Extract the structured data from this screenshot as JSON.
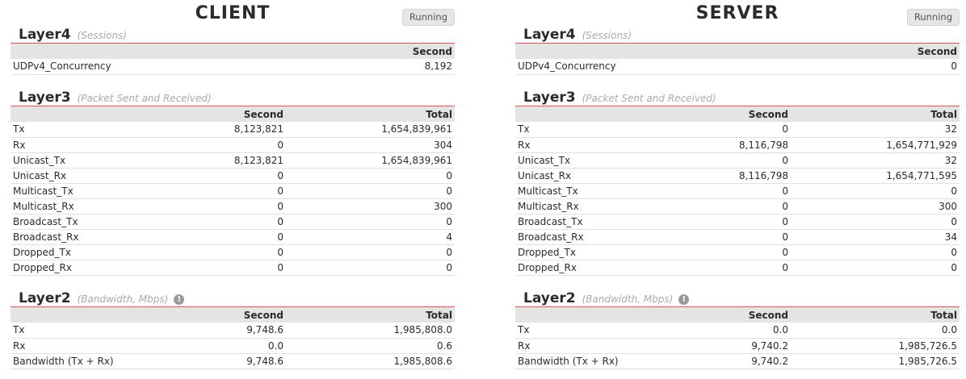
{
  "client": {
    "title": "CLIENT",
    "status": "Running",
    "layer4": {
      "title": "Layer4",
      "subtitle": "(Sessions)",
      "col_second": "Second",
      "rows": [
        {
          "name": "UDPv4_Concurrency",
          "second": "8,192"
        }
      ]
    },
    "layer3": {
      "title": "Layer3",
      "subtitle": "(Packet Sent and Received)",
      "col_second": "Second",
      "col_total": "Total",
      "rows": [
        {
          "name": "Tx",
          "second": "8,123,821",
          "total": "1,654,839,961"
        },
        {
          "name": "Rx",
          "second": "0",
          "total": "304"
        },
        {
          "name": "Unicast_Tx",
          "second": "8,123,821",
          "total": "1,654,839,961"
        },
        {
          "name": "Unicast_Rx",
          "second": "0",
          "total": "0"
        },
        {
          "name": "Multicast_Tx",
          "second": "0",
          "total": "0"
        },
        {
          "name": "Multicast_Rx",
          "second": "0",
          "total": "300"
        },
        {
          "name": "Broadcast_Tx",
          "second": "0",
          "total": "0"
        },
        {
          "name": "Broadcast_Rx",
          "second": "0",
          "total": "4"
        },
        {
          "name": "Dropped_Tx",
          "second": "0",
          "total": "0"
        },
        {
          "name": "Dropped_Rx",
          "second": "0",
          "total": "0"
        }
      ]
    },
    "layer2": {
      "title": "Layer2",
      "subtitle": "(Bandwidth, Mbps)",
      "info_icon": "!",
      "col_second": "Second",
      "col_total": "Total",
      "rows": [
        {
          "name": "Tx",
          "second": "9,748.6",
          "total": "1,985,808.0"
        },
        {
          "name": "Rx",
          "second": "0.0",
          "total": "0.6"
        },
        {
          "name": "Bandwidth (Tx + Rx)",
          "second": "9,748.6",
          "total": "1,985,808.6"
        }
      ]
    }
  },
  "server": {
    "title": "SERVER",
    "status": "Running",
    "layer4": {
      "title": "Layer4",
      "subtitle": "(Sessions)",
      "col_second": "Second",
      "rows": [
        {
          "name": "UDPv4_Concurrency",
          "second": "0"
        }
      ]
    },
    "layer3": {
      "title": "Layer3",
      "subtitle": "(Packet Sent and Received)",
      "col_second": "Second",
      "col_total": "Total",
      "rows": [
        {
          "name": "Tx",
          "second": "0",
          "total": "32"
        },
        {
          "name": "Rx",
          "second": "8,116,798",
          "total": "1,654,771,929"
        },
        {
          "name": "Unicast_Tx",
          "second": "0",
          "total": "32"
        },
        {
          "name": "Unicast_Rx",
          "second": "8,116,798",
          "total": "1,654,771,595"
        },
        {
          "name": "Multicast_Tx",
          "second": "0",
          "total": "0"
        },
        {
          "name": "Multicast_Rx",
          "second": "0",
          "total": "300"
        },
        {
          "name": "Broadcast_Tx",
          "second": "0",
          "total": "0"
        },
        {
          "name": "Broadcast_Rx",
          "second": "0",
          "total": "34"
        },
        {
          "name": "Dropped_Tx",
          "second": "0",
          "total": "0"
        },
        {
          "name": "Dropped_Rx",
          "second": "0",
          "total": "0"
        }
      ]
    },
    "layer2": {
      "title": "Layer2",
      "subtitle": "(Bandwidth, Mbps)",
      "info_icon": "!",
      "col_second": "Second",
      "col_total": "Total",
      "rows": [
        {
          "name": "Tx",
          "second": "0.0",
          "total": "0.0"
        },
        {
          "name": "Rx",
          "second": "9,740.2",
          "total": "1,985,726.5"
        },
        {
          "name": "Bandwidth (Tx + Rx)",
          "second": "9,740.2",
          "total": "1,985,726.5"
        }
      ]
    }
  }
}
